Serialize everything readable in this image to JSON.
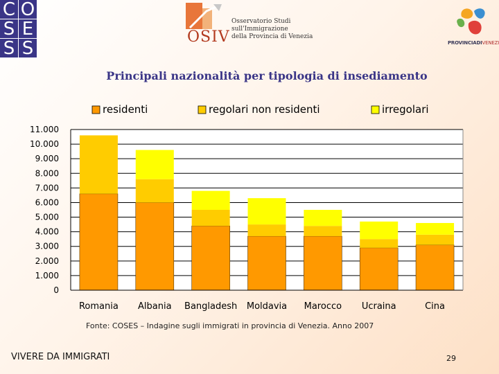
{
  "logos": {
    "coses_letters": [
      "C",
      "O",
      "S",
      "E",
      "S",
      "S"
    ],
    "osiv_word": "OSIV",
    "osiv_lines": [
      "Osservatorio Studi",
      "sull'Immigrazione",
      "della Provincia di Venezia"
    ],
    "provincia_bold": "PROVINCIADI",
    "provincia_light": "VENEZIA"
  },
  "colors": {
    "residenti": "#ff9900",
    "regolari": "#ffcc00",
    "irregolari": "#ffff00",
    "title": "#3a3587"
  },
  "chart_data": {
    "type": "bar",
    "stacked": true,
    "title": "Principali nazionalità per tipologia di insediamento",
    "categories": [
      "Romania",
      "Albania",
      "Bangladesh",
      "Moldavia",
      "Marocco",
      "Ucraina",
      "Cina"
    ],
    "series": [
      {
        "name": "residenti",
        "values": [
          6600,
          6000,
          4400,
          3700,
          3700,
          2900,
          3100
        ]
      },
      {
        "name": "regolari non residenti",
        "values": [
          4000,
          1600,
          1100,
          800,
          700,
          600,
          700
        ]
      },
      {
        "name": "irregolari",
        "values": [
          0,
          2000,
          1300,
          1800,
          1100,
          1200,
          800
        ]
      }
    ],
    "ylim": [
      0,
      11000
    ],
    "yticks": [
      "0",
      "1.000",
      "2.000",
      "3.000",
      "4.000",
      "5.000",
      "6.000",
      "7.000",
      "8.000",
      "9.000",
      "10.000",
      "11.000"
    ],
    "legend_position": "top",
    "xlabel": "",
    "ylabel": ""
  },
  "source": "Fonte: COSES – Indagine sugli immigrati in provincia di Venezia. Anno 2007",
  "footer": {
    "left": "VIVERE DA IMMIGRATI",
    "page": "29"
  }
}
